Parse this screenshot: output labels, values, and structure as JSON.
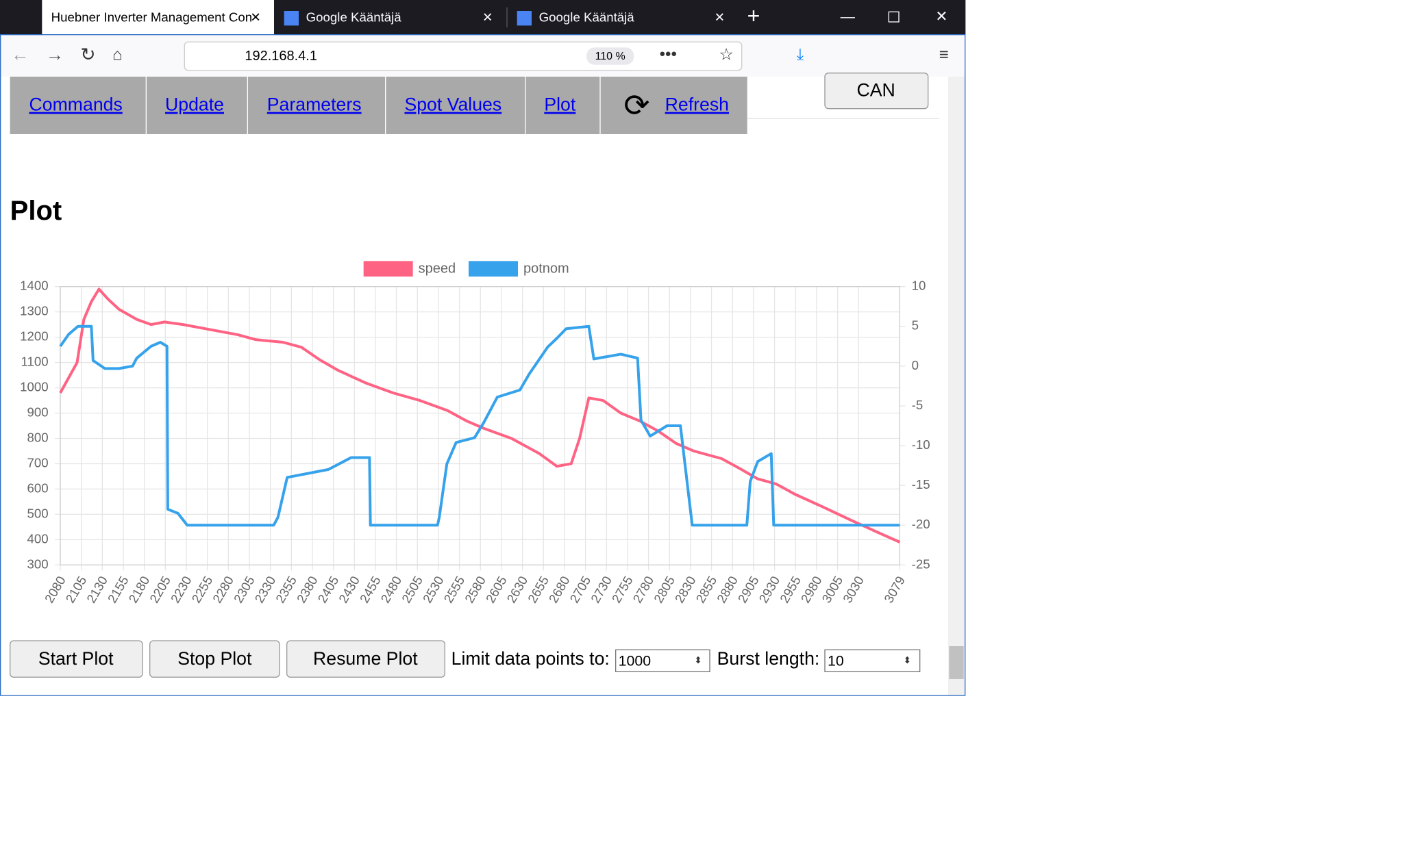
{
  "browser": {
    "tabs": [
      "Huebner Inverter Management Con",
      "Google Kääntäjä",
      "Google Kääntäjä"
    ],
    "url": "192.168.4.1",
    "zoom": "110 %"
  },
  "nav": {
    "links": [
      "Commands",
      "Update",
      "Parameters",
      "Spot Values",
      "Plot",
      "Refresh"
    ],
    "can_button": "CAN"
  },
  "heading": "Plot",
  "chart_data": {
    "type": "line",
    "xlim": [
      2080,
      3079
    ],
    "xticks": [
      2080,
      2105,
      2130,
      2155,
      2180,
      2205,
      2230,
      2255,
      2280,
      2305,
      2330,
      2355,
      2380,
      2405,
      2430,
      2455,
      2480,
      2505,
      2530,
      2555,
      2580,
      2605,
      2630,
      2655,
      2680,
      2705,
      2730,
      2755,
      2780,
      2805,
      2830,
      2855,
      2880,
      2905,
      2930,
      2955,
      2980,
      3005,
      3030,
      3079
    ],
    "ylim": [
      300,
      1400
    ],
    "yticks": [
      300,
      400,
      500,
      600,
      700,
      800,
      900,
      1000,
      1100,
      1200,
      1300,
      1400
    ],
    "y2lim": [
      -25,
      10
    ],
    "y2ticks": [
      -25,
      -20,
      -15,
      -10,
      -5,
      0,
      5,
      10
    ],
    "grid": true,
    "legend": "top",
    "series": [
      {
        "name": "speed",
        "color": "#ff6384",
        "x": [
          2080,
          2100,
          2108,
          2117,
          2126,
          2137,
          2150,
          2171,
          2188,
          2204,
          2226,
          2258,
          2291,
          2313,
          2345,
          2367,
          2389,
          2410,
          2443,
          2476,
          2508,
          2541,
          2563,
          2584,
          2617,
          2650,
          2671,
          2688,
          2698,
          2709,
          2726,
          2747,
          2769,
          2791,
          2813,
          2834,
          2867,
          2889,
          2910,
          2932,
          2954,
          2987,
          3019,
          3052,
          3079
        ],
        "values": [
          980,
          1100,
          1270,
          1340,
          1390,
          1350,
          1310,
          1270,
          1250,
          1260,
          1250,
          1230,
          1210,
          1190,
          1180,
          1160,
          1110,
          1070,
          1020,
          980,
          950,
          910,
          870,
          840,
          800,
          740,
          690,
          700,
          800,
          960,
          950,
          900,
          870,
          830,
          780,
          750,
          720,
          680,
          640,
          620,
          580,
          530,
          480,
          430,
          390
        ]
      },
      {
        "name": "potnom",
        "color": "#36a2eb",
        "axis": "y2",
        "x": [
          2080,
          2090,
          2101,
          2117,
          2119,
          2133,
          2150,
          2166,
          2171,
          2188,
          2199,
          2207,
          2208,
          2220,
          2231,
          2334,
          2339,
          2350,
          2399,
          2426,
          2448,
          2449,
          2529,
          2531,
          2540,
          2551,
          2573,
          2584,
          2600,
          2627,
          2638,
          2660,
          2671,
          2682,
          2709,
          2715,
          2747,
          2767,
          2771,
          2782,
          2802,
          2818,
          2823,
          2832,
          2897,
          2901,
          2910,
          2926,
          2929,
          3079
        ],
        "values": [
          2.5,
          4,
          5,
          5,
          0.7,
          -0.3,
          -0.3,
          0,
          1,
          2.5,
          3,
          2.5,
          -18,
          -18.5,
          -20,
          -20,
          -19,
          -14,
          -13,
          -11.5,
          -11.5,
          -20,
          -20,
          -19,
          -12.3,
          -9.6,
          -9,
          -7.1,
          -3.9,
          -3,
          -1,
          2.4,
          3.5,
          4.7,
          5,
          0.9,
          1.5,
          1,
          -6.8,
          -8.8,
          -7.5,
          -7.5,
          -12,
          -20,
          -20,
          -14.5,
          -12,
          -11,
          -20,
          -20
        ]
      }
    ]
  },
  "controls": {
    "buttons": [
      "Start Plot",
      "Stop Plot",
      "Resume Plot"
    ],
    "limit_label": "Limit data points to:",
    "limit_value": "1000",
    "burst_label": "Burst length:",
    "burst_value": "10"
  }
}
